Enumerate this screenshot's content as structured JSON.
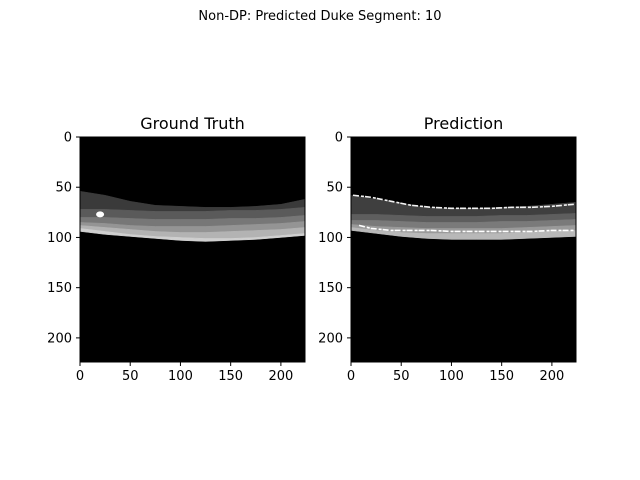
{
  "figure": {
    "suptitle": "Non-DP: Predicted Duke Segment: 10"
  },
  "chart_data": [
    {
      "type": "heatmap",
      "title": "Ground Truth",
      "xlabel": "",
      "ylabel": "",
      "xlim": [
        0,
        224
      ],
      "ylim": [
        224,
        0
      ],
      "xticks": [
        0,
        50,
        100,
        150,
        200
      ],
      "yticks": [
        0,
        50,
        100,
        150,
        200
      ],
      "background": "#000000",
      "layers": [
        {
          "color": "#3a3a3a",
          "x": [
            0,
            25,
            50,
            75,
            100,
            125,
            150,
            175,
            200,
            224
          ],
          "top": [
            54,
            58,
            64,
            68,
            69,
            70,
            70,
            69,
            67,
            62
          ],
          "bottom": [
            72,
            72,
            73,
            74,
            74,
            74,
            73,
            73,
            72,
            70
          ]
        },
        {
          "color": "#5a5a5a",
          "x": [
            0,
            25,
            50,
            75,
            100,
            125,
            150,
            175,
            200,
            224
          ],
          "top": [
            72,
            72,
            73,
            74,
            74,
            74,
            73,
            73,
            72,
            70
          ],
          "bottom": [
            80,
            80,
            81,
            82,
            82,
            82,
            81,
            81,
            80,
            78
          ]
        },
        {
          "color": "#777777",
          "x": [
            0,
            25,
            50,
            75,
            100,
            125,
            150,
            175,
            200,
            224
          ],
          "top": [
            80,
            80,
            81,
            82,
            82,
            82,
            81,
            81,
            80,
            78
          ],
          "bottom": [
            85,
            86,
            88,
            89,
            89,
            89,
            88,
            87,
            86,
            84
          ]
        },
        {
          "color": "#949494",
          "x": [
            0,
            25,
            50,
            75,
            100,
            125,
            150,
            175,
            200,
            224
          ],
          "top": [
            85,
            86,
            88,
            89,
            89,
            89,
            88,
            87,
            86,
            84
          ],
          "bottom": [
            88,
            90,
            92,
            94,
            95,
            95,
            94,
            93,
            92,
            90
          ]
        },
        {
          "color": "#b3b3b3",
          "x": [
            0,
            25,
            50,
            75,
            100,
            125,
            150,
            175,
            200,
            224
          ],
          "top": [
            88,
            90,
            92,
            94,
            95,
            95,
            94,
            93,
            92,
            90
          ],
          "bottom": [
            91,
            94,
            97,
            99,
            100,
            101,
            101,
            100,
            98,
            96
          ]
        },
        {
          "color": "#cfcfcf",
          "x": [
            0,
            25,
            50,
            75,
            100,
            125,
            150,
            175,
            200,
            224
          ],
          "top": [
            91,
            94,
            97,
            99,
            100,
            101,
            101,
            100,
            98,
            96
          ],
          "bottom": [
            94,
            97,
            99,
            101,
            103,
            104,
            103,
            102,
            100,
            98
          ]
        }
      ],
      "blob": {
        "color": "#ffffff",
        "x": 20,
        "y": 77
      }
    },
    {
      "type": "heatmap",
      "title": "Prediction",
      "xlabel": "",
      "ylabel": "",
      "xlim": [
        0,
        224
      ],
      "ylim": [
        224,
        0
      ],
      "xticks": [
        0,
        50,
        100,
        150,
        200
      ],
      "yticks": [
        0,
        50,
        100,
        150,
        200
      ],
      "background": "#000000",
      "layers": [
        {
          "color": "#3f3f3f",
          "x": [
            0,
            25,
            50,
            75,
            100,
            125,
            150,
            175,
            200,
            224
          ],
          "top": [
            58,
            62,
            66,
            70,
            71,
            71,
            70,
            69,
            67,
            65
          ],
          "bottom": [
            77,
            77,
            78,
            79,
            79,
            79,
            78,
            78,
            77,
            76
          ]
        },
        {
          "color": "#5e5e5e",
          "x": [
            0,
            25,
            50,
            75,
            100,
            125,
            150,
            175,
            200,
            224
          ],
          "top": [
            77,
            77,
            78,
            79,
            79,
            79,
            78,
            78,
            77,
            76
          ],
          "bottom": [
            83,
            83,
            84,
            85,
            85,
            85,
            84,
            84,
            83,
            82
          ]
        },
        {
          "color": "#7a7a7a",
          "x": [
            0,
            25,
            50,
            75,
            100,
            125,
            150,
            175,
            200,
            224
          ],
          "top": [
            83,
            83,
            84,
            85,
            85,
            85,
            84,
            84,
            83,
            82
          ],
          "bottom": [
            87,
            89,
            90,
            91,
            91,
            91,
            91,
            90,
            89,
            88
          ]
        },
        {
          "color": "#9a9a9a",
          "x": [
            0,
            25,
            50,
            75,
            100,
            125,
            150,
            175,
            200,
            224
          ],
          "top": [
            87,
            89,
            90,
            91,
            91,
            91,
            91,
            90,
            89,
            88
          ],
          "bottom": [
            90,
            93,
            95,
            96,
            96,
            96,
            96,
            95,
            94,
            93
          ]
        },
        {
          "color": "#b8b8b8",
          "x": [
            0,
            25,
            50,
            75,
            100,
            125,
            150,
            175,
            200,
            224
          ],
          "top": [
            90,
            93,
            95,
            96,
            96,
            96,
            96,
            95,
            94,
            93
          ],
          "bottom": [
            93,
            96,
            99,
            101,
            102,
            102,
            102,
            101,
            100,
            99
          ]
        }
      ],
      "edge_lines": [
        {
          "color": "#f2f2f2",
          "x": [
            2,
            20,
            40,
            60,
            80,
            100,
            120,
            140,
            160,
            180,
            200,
            222
          ],
          "y": [
            58,
            60,
            64,
            68,
            70,
            71,
            71,
            71,
            70,
            70,
            69,
            67
          ]
        },
        {
          "color": "#ffffff",
          "x": [
            8,
            20,
            40,
            60,
            80,
            100,
            120,
            140,
            160,
            180,
            200,
            222
          ],
          "y": [
            88,
            91,
            93,
            93,
            93,
            94,
            94,
            94,
            94,
            94,
            93,
            93
          ]
        }
      ]
    }
  ]
}
